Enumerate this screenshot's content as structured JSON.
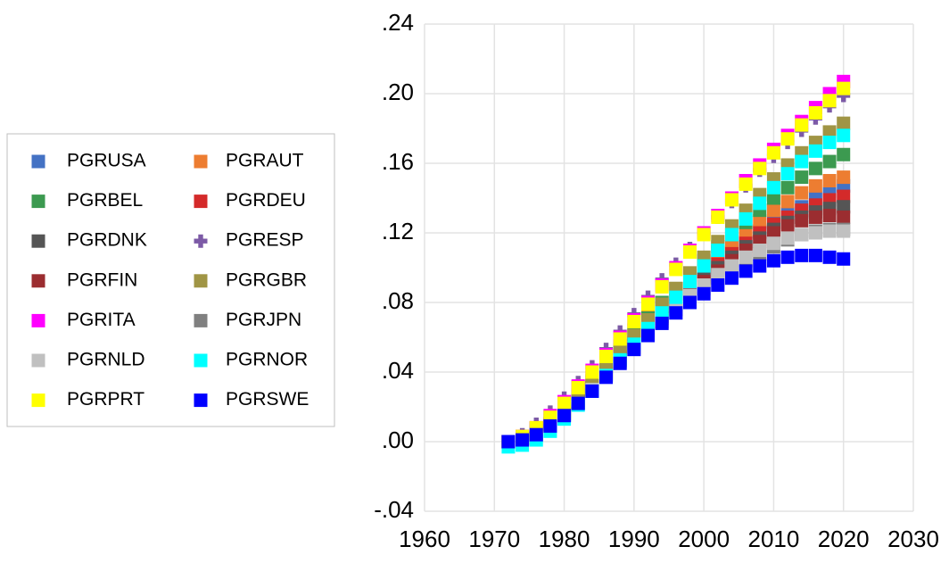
{
  "chart_data": {
    "type": "scatter",
    "legend": "left",
    "grid": true,
    "xlim": [
      1960,
      2030
    ],
    "xticks": [
      1960,
      1970,
      1980,
      1990,
      2000,
      2010,
      2020,
      2030
    ],
    "ylim": [
      -0.04,
      0.24
    ],
    "yticks": [
      {
        "value": -0.04,
        "label": "-.04"
      },
      {
        "value": 0,
        "label": ".00"
      },
      {
        "value": 0.04,
        "label": ".04"
      },
      {
        "value": 0.08,
        "label": ".08"
      },
      {
        "value": 0.12,
        "label": ".12"
      },
      {
        "value": 0.16,
        "label": ".16"
      },
      {
        "value": 0.2,
        "label": ".20"
      },
      {
        "value": 0.24,
        "label": ".24"
      }
    ],
    "x": [
      1972,
      1974,
      1976,
      1978,
      1980,
      1982,
      1984,
      1986,
      1988,
      1990,
      1992,
      1994,
      1996,
      1998,
      2000,
      2002,
      2004,
      2006,
      2008,
      2010,
      2012,
      2014,
      2016,
      2018,
      2020
    ],
    "series": [
      {
        "name": "PGRUSA",
        "color": "#4472c4",
        "marker": "square",
        "values": [
          0,
          0.001,
          0.004,
          0.009,
          0.015,
          0.022,
          0.029,
          0.038,
          0.047,
          0.056,
          0.065,
          0.074,
          0.081,
          0.088,
          0.096,
          0.103,
          0.109,
          0.115,
          0.121,
          0.126,
          0.131,
          0.135,
          0.14,
          0.144,
          0.147
        ]
      },
      {
        "name": "PGRAUT",
        "color": "#ed7d31",
        "marker": "square",
        "values": [
          0,
          0.003,
          0.008,
          0.014,
          0.021,
          0.029,
          0.037,
          0.046,
          0.055,
          0.064,
          0.072,
          0.08,
          0.088,
          0.095,
          0.102,
          0.109,
          0.115,
          0.121,
          0.127,
          0.133,
          0.138,
          0.143,
          0.147,
          0.15,
          0.152
        ]
      },
      {
        "name": "PGRBEL",
        "color": "#3c9a50",
        "marker": "square",
        "values": [
          0,
          0.002,
          0.006,
          0.012,
          0.019,
          0.027,
          0.035,
          0.044,
          0.053,
          0.062,
          0.071,
          0.08,
          0.088,
          0.096,
          0.104,
          0.112,
          0.119,
          0.126,
          0.133,
          0.14,
          0.146,
          0.152,
          0.157,
          0.161,
          0.165
        ]
      },
      {
        "name": "PGRDEU",
        "color": "#d42a2a",
        "marker": "square",
        "values": [
          0,
          0.002,
          0.005,
          0.01,
          0.017,
          0.024,
          0.032,
          0.04,
          0.049,
          0.057,
          0.065,
          0.073,
          0.081,
          0.088,
          0.095,
          0.102,
          0.108,
          0.114,
          0.12,
          0.125,
          0.129,
          0.133,
          0.136,
          0.139,
          0.141
        ]
      },
      {
        "name": "PGRDNK",
        "color": "#555555",
        "marker": "square",
        "values": [
          0,
          0.002,
          0.005,
          0.01,
          0.016,
          0.023,
          0.031,
          0.039,
          0.048,
          0.056,
          0.064,
          0.072,
          0.08,
          0.087,
          0.094,
          0.1,
          0.106,
          0.112,
          0.117,
          0.122,
          0.126,
          0.129,
          0.132,
          0.134,
          0.135
        ]
      },
      {
        "name": "PGRESP",
        "color": "#7c5aa6",
        "marker": "plus",
        "values": [
          0,
          0.004,
          0.01,
          0.017,
          0.025,
          0.034,
          0.043,
          0.053,
          0.063,
          0.073,
          0.083,
          0.093,
          0.102,
          0.111,
          0.12,
          0.129,
          0.138,
          0.147,
          0.156,
          0.164,
          0.172,
          0.179,
          0.186,
          0.193,
          0.199
        ]
      },
      {
        "name": "PGRFIN",
        "color": "#9b2d30",
        "marker": "square",
        "values": [
          0,
          0.002,
          0.005,
          0.01,
          0.016,
          0.023,
          0.031,
          0.039,
          0.047,
          0.055,
          0.063,
          0.071,
          0.078,
          0.085,
          0.092,
          0.098,
          0.104,
          0.11,
          0.115,
          0.12,
          0.124,
          0.127,
          0.129,
          0.13,
          0.129
        ]
      },
      {
        "name": "PGRGBR",
        "color": "#a09545",
        "marker": "square",
        "values": [
          0,
          0.002,
          0.006,
          0.011,
          0.018,
          0.026,
          0.034,
          0.043,
          0.052,
          0.061,
          0.07,
          0.079,
          0.088,
          0.097,
          0.106,
          0.115,
          0.124,
          0.133,
          0.142,
          0.151,
          0.159,
          0.166,
          0.172,
          0.178,
          0.183
        ]
      },
      {
        "name": "PGRITA",
        "color": "#ff00ff",
        "marker": "square",
        "values": [
          0,
          0.003,
          0.008,
          0.015,
          0.023,
          0.032,
          0.041,
          0.05,
          0.06,
          0.07,
          0.08,
          0.09,
          0.1,
          0.11,
          0.12,
          0.13,
          0.14,
          0.15,
          0.159,
          0.168,
          0.176,
          0.184,
          0.192,
          0.2,
          0.207
        ]
      },
      {
        "name": "PGRJPN",
        "color": "#808080",
        "marker": "square",
        "values": [
          0,
          0.001,
          0.004,
          0.009,
          0.015,
          0.022,
          0.03,
          0.038,
          0.046,
          0.054,
          0.062,
          0.069,
          0.076,
          0.082,
          0.088,
          0.094,
          0.099,
          0.104,
          0.108,
          0.112,
          0.116,
          0.119,
          0.121,
          0.122,
          0.122
        ]
      },
      {
        "name": "PGRNLD",
        "color": "#c0c0c0",
        "marker": "square",
        "values": [
          0,
          0.001,
          0.004,
          0.009,
          0.015,
          0.022,
          0.03,
          0.038,
          0.046,
          0.054,
          0.062,
          0.07,
          0.077,
          0.084,
          0.09,
          0.096,
          0.101,
          0.106,
          0.11,
          0.114,
          0.117,
          0.119,
          0.12,
          0.121,
          0.121
        ]
      },
      {
        "name": "PGRNOR",
        "color": "#00ffff",
        "marker": "square",
        "values": [
          -0.003,
          -0.002,
          0.001,
          0.006,
          0.013,
          0.021,
          0.029,
          0.038,
          0.047,
          0.056,
          0.065,
          0.074,
          0.083,
          0.092,
          0.101,
          0.11,
          0.119,
          0.128,
          0.137,
          0.146,
          0.154,
          0.161,
          0.167,
          0.172,
          0.176
        ]
      },
      {
        "name": "PGRPRT",
        "color": "#ffff00",
        "marker": "square",
        "values": [
          0,
          0.003,
          0.008,
          0.014,
          0.022,
          0.031,
          0.04,
          0.049,
          0.059,
          0.069,
          0.079,
          0.089,
          0.099,
          0.109,
          0.119,
          0.129,
          0.139,
          0.148,
          0.157,
          0.166,
          0.174,
          0.182,
          0.189,
          0.196,
          0.203
        ]
      },
      {
        "name": "PGRSWE",
        "color": "#0000ff",
        "marker": "square",
        "values": [
          0,
          0.001,
          0.004,
          0.009,
          0.015,
          0.022,
          0.029,
          0.037,
          0.045,
          0.053,
          0.061,
          0.068,
          0.074,
          0.08,
          0.085,
          0.09,
          0.094,
          0.098,
          0.101,
          0.104,
          0.106,
          0.107,
          0.107,
          0.106,
          0.105
        ]
      }
    ]
  }
}
